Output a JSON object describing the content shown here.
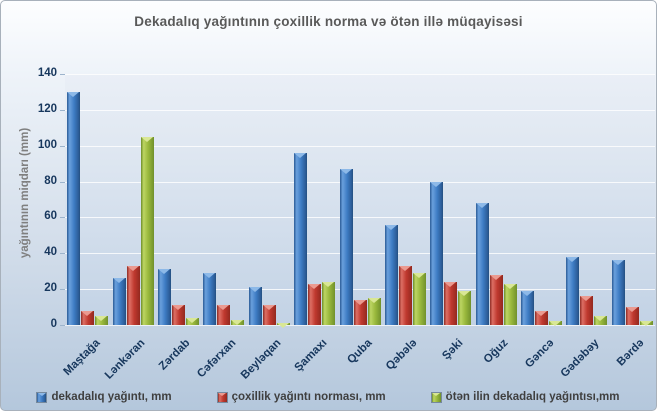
{
  "chart_data": {
    "type": "bar",
    "title": "Dekadalıq yağıntının çoxillik norma  və ötən illə müqayisəsi",
    "ylabel": "yağıntının miqdarı (mm)",
    "xlabel": "",
    "ylim": [
      0,
      140
    ],
    "yticks": [
      0,
      20,
      40,
      60,
      80,
      100,
      120,
      140
    ],
    "grid": true,
    "legend_position": "bottom",
    "categories": [
      "Maştağa",
      "Lənkəran",
      "Zərdab",
      "Cəfərxan",
      "Beyləqan",
      "Şamaxı",
      "Quba",
      "Qəbələ",
      "Şəki",
      "Oğuz",
      "Gəncə",
      "Gədəbəy",
      "Bərdə"
    ],
    "series": [
      {
        "name": "dekadalıq yağıntı, mm",
        "color": "#3e7cc4",
        "values": [
          130,
          26,
          31,
          29,
          21,
          96,
          87,
          56,
          80,
          68,
          19,
          38,
          36
        ]
      },
      {
        "name": "çoxillik yağıntı norması, mm",
        "color": "#c0392f",
        "values": [
          8,
          33,
          11,
          11,
          11,
          23,
          14,
          33,
          24,
          28,
          8,
          16,
          10
        ]
      },
      {
        "name": "ötən ilin dekadalıq yağıntısı,mm",
        "color": "#9ab93d",
        "values": [
          5,
          105,
          4,
          3,
          1,
          24,
          15,
          29,
          19,
          23,
          2,
          5,
          2
        ]
      }
    ]
  },
  "style": {
    "tick_color": "#17375d",
    "title_color": "#595959",
    "ylabel_color": "#7f7f7f",
    "plot_bg_top": "#eaeff6",
    "plot_bg_bottom": "#c2d2e5",
    "window_bg_bottom": "#b4c7dc"
  }
}
